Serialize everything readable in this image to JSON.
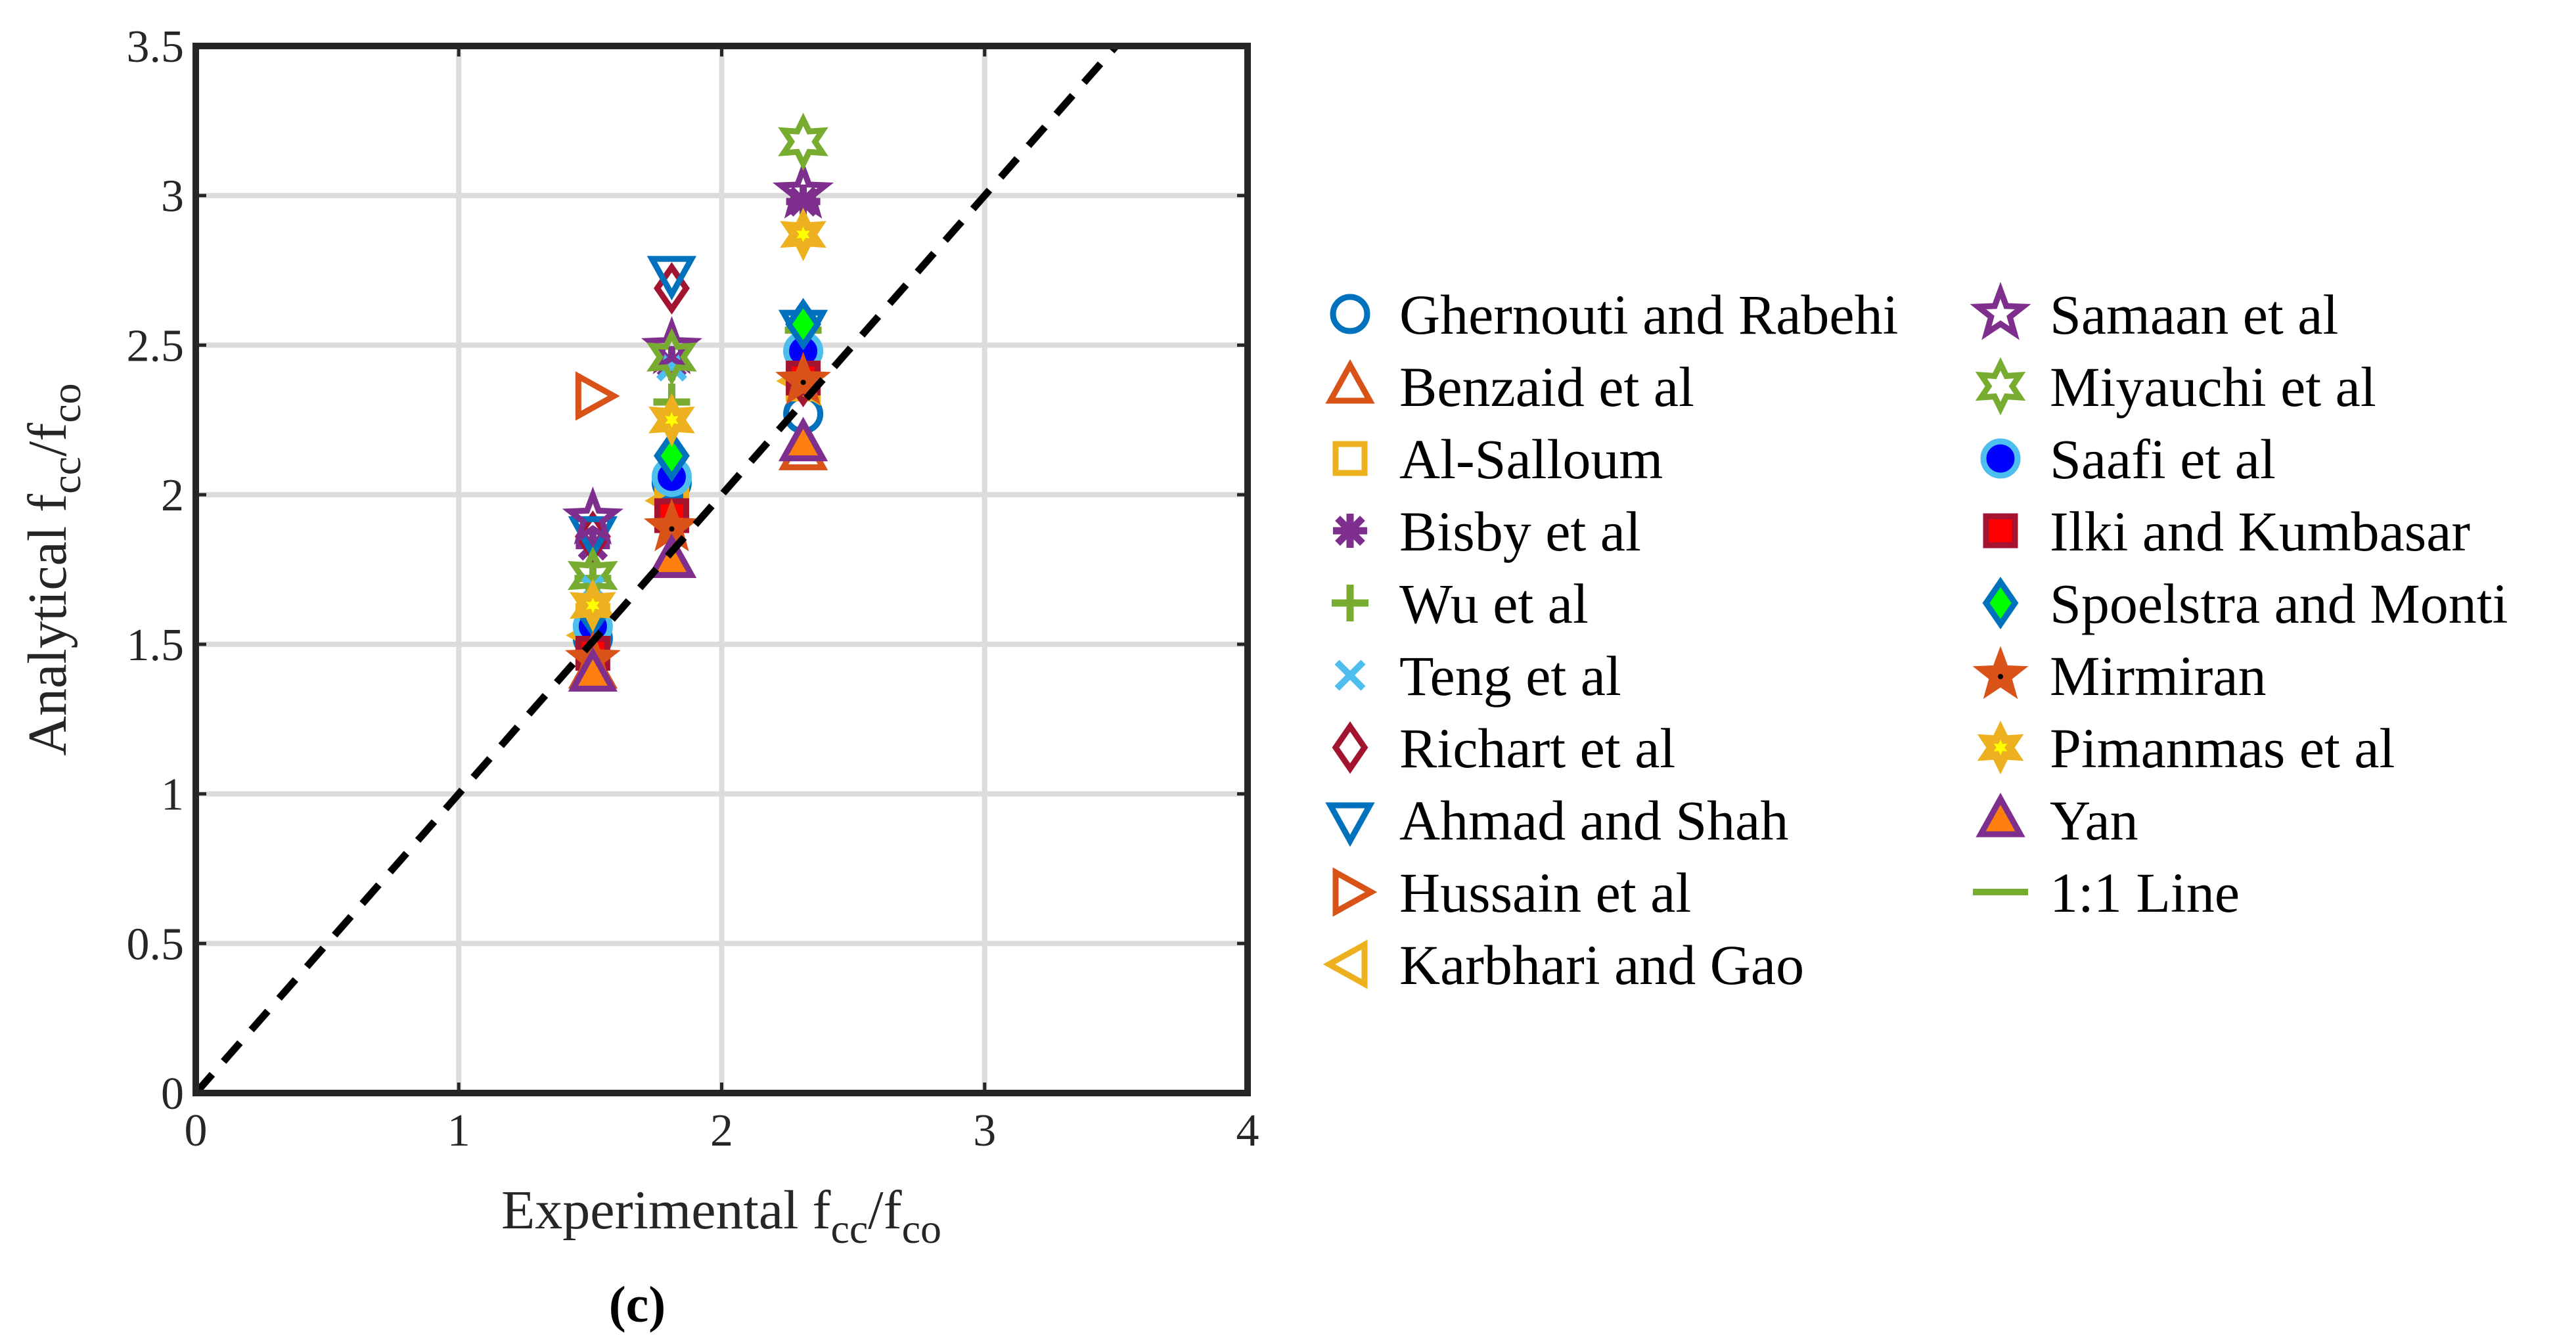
{
  "chart_data": {
    "type": "scatter",
    "title": "",
    "xlabel": {
      "main": "Experimental f",
      "sub1": "cc",
      "mid": "/f",
      "sub2": "co"
    },
    "ylabel": {
      "main": "Analytical f",
      "sub1": "cc",
      "mid": "/f",
      "sub2": "co"
    },
    "xlim": [
      0,
      4
    ],
    "ylim": [
      0,
      3.5
    ],
    "xticks": [
      0,
      1,
      2,
      3,
      4
    ],
    "yticks": [
      0,
      0.5,
      1,
      1.5,
      2,
      2.5,
      3,
      3.5
    ],
    "xtick_labels": [
      "0",
      "1",
      "2",
      "3",
      "4"
    ],
    "ytick_labels": [
      "0",
      "0.5",
      "1",
      "1.5",
      "2",
      "2.5",
      "3",
      "3.5"
    ],
    "grid": true,
    "legend_position": "right",
    "caption": "(c)",
    "series": [
      {
        "name": "Ghernouti and Rabehi",
        "marker": "circle-open",
        "color": "#0072BD",
        "x": [
          1.51,
          1.81,
          2.31
        ],
        "y": [
          1.52,
          2.04,
          2.27
        ]
      },
      {
        "name": "Benzaid et al",
        "marker": "triangle-up-open",
        "color": "#D95319",
        "x": [
          1.51,
          1.81,
          2.31
        ],
        "y": [
          1.41,
          1.78,
          2.14
        ]
      },
      {
        "name": "Al-Salloum",
        "marker": "square-open",
        "color": "#EDB120",
        "x": [
          1.51,
          1.81,
          2.31
        ],
        "y": [
          1.58,
          1.99,
          2.37
        ]
      },
      {
        "name": "Bisby et al",
        "marker": "asterisk",
        "color": "#7E2F8E",
        "x": [
          1.51,
          1.81,
          2.31
        ],
        "y": [
          1.83,
          2.44,
          2.98
        ]
      },
      {
        "name": "Wu et al",
        "marker": "plus",
        "color": "#77AC30",
        "x": [
          1.51,
          1.81,
          2.31
        ],
        "y": [
          1.72,
          2.31,
          2.55
        ]
      },
      {
        "name": "Teng et al",
        "marker": "x",
        "color": "#4DBEEE",
        "x": [
          1.51,
          1.81,
          2.31
        ],
        "y": [
          1.69,
          2.43,
          2.41
        ]
      },
      {
        "name": "Richart et al",
        "marker": "diamond-open",
        "color": "#A2142F",
        "x": [
          1.51,
          1.81,
          2.31
        ],
        "y": [
          1.86,
          2.69,
          2.38
        ]
      },
      {
        "name": "Ahmad and Shah",
        "marker": "triangle-down-open",
        "color": "#0072BD",
        "x": [
          1.51,
          1.81,
          2.31
        ],
        "y": [
          1.87,
          2.74,
          2.56
        ]
      },
      {
        "name": "Hussain et al",
        "marker": "triangle-right-open",
        "color": "#D95319",
        "x": [
          1.51
        ],
        "y": [
          2.33
        ]
      },
      {
        "name": "Karbhari and Gao",
        "marker": "triangle-left-open",
        "color": "#EDB120",
        "x": [
          1.51,
          1.81,
          2.31
        ],
        "y": [
          1.53,
          1.98,
          2.38
        ]
      },
      {
        "name": "Samaan et al",
        "marker": "pentagram",
        "color": "#7E2F8E",
        "x": [
          1.51,
          1.81,
          2.31
        ],
        "y": [
          1.92,
          2.49,
          3.01
        ]
      },
      {
        "name": "Miyauchi et al",
        "marker": "hexagram",
        "color": "#77AC30",
        "x": [
          1.51,
          1.81,
          2.31
        ],
        "y": [
          1.73,
          2.46,
          3.18
        ]
      },
      {
        "name": "Saafi et al",
        "marker": "circle-filled",
        "color": "#4DBEEE",
        "x": [
          1.51,
          1.81,
          2.31
        ],
        "y": [
          1.56,
          2.06,
          2.48
        ]
      },
      {
        "name": "Ilki and Kumbasar",
        "marker": "square-filled",
        "color": "#A2142F",
        "x": [
          1.51,
          1.81,
          2.31
        ],
        "y": [
          1.47,
          1.93,
          2.39
        ]
      },
      {
        "name": "Spoelstra and Monti",
        "marker": "diamond-filled",
        "color": "#0072BD",
        "x": [
          1.51,
          1.81,
          2.31
        ],
        "y": [
          1.61,
          2.13,
          2.57
        ]
      },
      {
        "name": "Mirmiran",
        "marker": "pentagram-filled",
        "color": "#D95319",
        "x": [
          1.51,
          1.81,
          2.31
        ],
        "y": [
          1.45,
          1.89,
          2.38
        ]
      },
      {
        "name": "Pimanmas et al",
        "marker": "hexagram-filled",
        "color": "#EDB120",
        "x": [
          1.51,
          1.81,
          2.31
        ],
        "y": [
          1.63,
          2.25,
          2.87
        ]
      },
      {
        "name": "Yan",
        "marker": "triangle-up-filled",
        "color": "#7E2F8E",
        "x": [
          1.51,
          1.81,
          2.31
        ],
        "y": [
          1.4,
          1.78,
          2.17
        ]
      },
      {
        "name": "1:1 Line",
        "marker": "line",
        "color": "#000000",
        "legend_color": "#77AC30",
        "x": [
          0,
          3.5
        ],
        "y": [
          0,
          3.5
        ]
      }
    ]
  }
}
